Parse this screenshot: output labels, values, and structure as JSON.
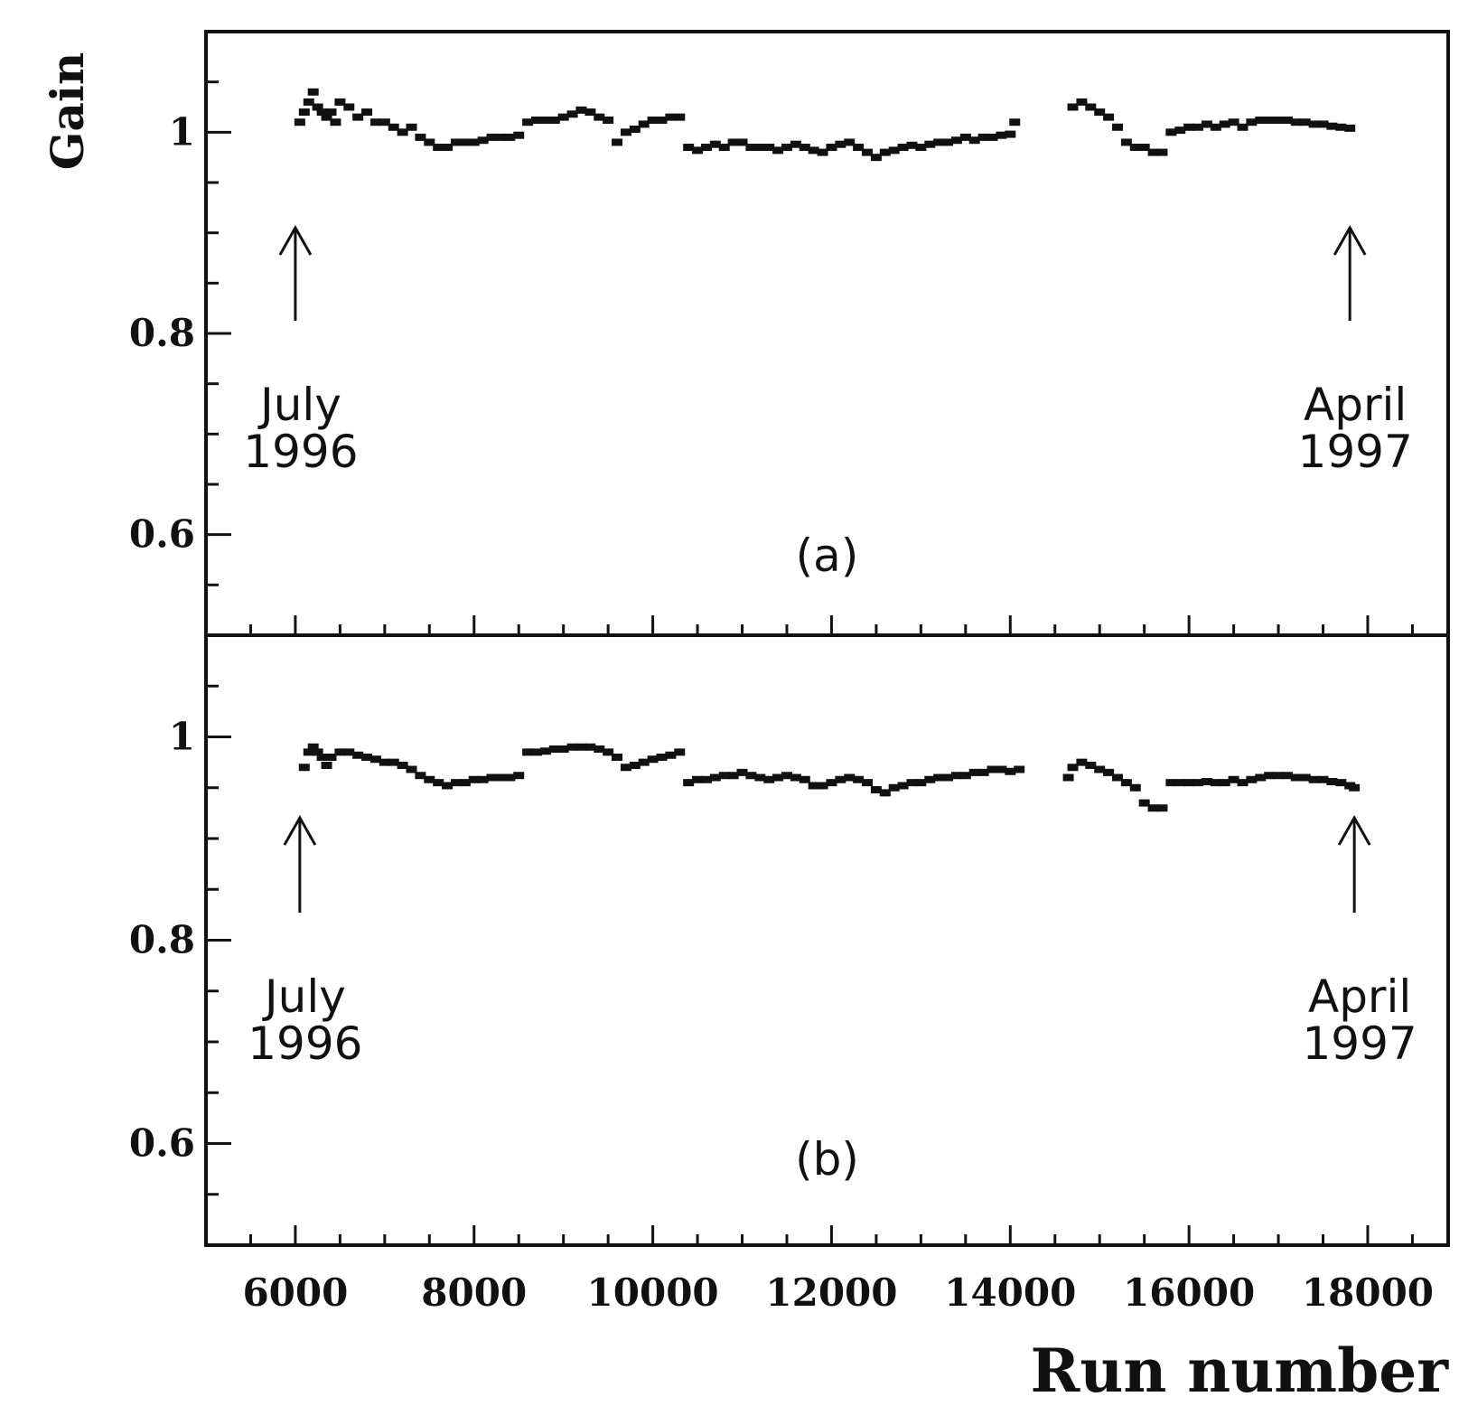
{
  "chart_data": {
    "type": "scatter",
    "ylabel": "Gain",
    "xlabel": "Run number",
    "xlim": [
      5000,
      18900
    ],
    "ylim": [
      0.5,
      1.1
    ],
    "x_ticks": [
      6000,
      8000,
      10000,
      12000,
      14000,
      16000,
      18000
    ],
    "x_tick_labels": [
      "6000",
      "8000",
      "10000",
      "12000",
      "14000",
      "16000",
      "18000"
    ],
    "y_ticks": [
      0.6,
      0.8,
      1.0
    ],
    "y_tick_labels": [
      "0.6",
      "0.8",
      "1"
    ],
    "grid": false,
    "panels": [
      {
        "label": "(a)",
        "annotations": [
          {
            "text_line1": "July",
            "text_line2": "1996",
            "arrow_x": 6000
          },
          {
            "text_line1": "April",
            "text_line2": "1997",
            "arrow_x": 17800
          }
        ],
        "points": [
          [
            6050,
            1.01
          ],
          [
            6100,
            1.02
          ],
          [
            6150,
            1.03
          ],
          [
            6200,
            1.04
          ],
          [
            6250,
            1.025
          ],
          [
            6300,
            1.02
          ],
          [
            6350,
            1.015
          ],
          [
            6400,
            1.02
          ],
          [
            6450,
            1.01
          ],
          [
            6500,
            1.03
          ],
          [
            6600,
            1.025
          ],
          [
            6700,
            1.015
          ],
          [
            6800,
            1.02
          ],
          [
            6900,
            1.01
          ],
          [
            7000,
            1.01
          ],
          [
            7100,
            1.005
          ],
          [
            7200,
            1.0
          ],
          [
            7300,
            1.005
          ],
          [
            7400,
            0.995
          ],
          [
            7500,
            0.99
          ],
          [
            7600,
            0.985
          ],
          [
            7700,
            0.985
          ],
          [
            7800,
            0.99
          ],
          [
            7900,
            0.99
          ],
          [
            8000,
            0.99
          ],
          [
            8100,
            0.992
          ],
          [
            8200,
            0.995
          ],
          [
            8300,
            0.995
          ],
          [
            8400,
            0.995
          ],
          [
            8500,
            0.997
          ],
          [
            8600,
            1.01
          ],
          [
            8700,
            1.012
          ],
          [
            8800,
            1.012
          ],
          [
            8900,
            1.012
          ],
          [
            9000,
            1.015
          ],
          [
            9100,
            1.018
          ],
          [
            9200,
            1.022
          ],
          [
            9300,
            1.02
          ],
          [
            9400,
            1.015
          ],
          [
            9500,
            1.012
          ],
          [
            9600,
            0.99
          ],
          [
            9700,
            1.0
          ],
          [
            9800,
            1.003
          ],
          [
            9900,
            1.008
          ],
          [
            10000,
            1.012
          ],
          [
            10100,
            1.012
          ],
          [
            10200,
            1.015
          ],
          [
            10300,
            1.015
          ],
          [
            10400,
            0.985
          ],
          [
            10500,
            0.982
          ],
          [
            10600,
            0.985
          ],
          [
            10700,
            0.988
          ],
          [
            10800,
            0.985
          ],
          [
            10900,
            0.99
          ],
          [
            11000,
            0.99
          ],
          [
            11100,
            0.985
          ],
          [
            11200,
            0.985
          ],
          [
            11300,
            0.985
          ],
          [
            11400,
            0.982
          ],
          [
            11500,
            0.985
          ],
          [
            11600,
            0.988
          ],
          [
            11700,
            0.985
          ],
          [
            11800,
            0.982
          ],
          [
            11900,
            0.98
          ],
          [
            12000,
            0.985
          ],
          [
            12100,
            0.988
          ],
          [
            12200,
            0.99
          ],
          [
            12300,
            0.985
          ],
          [
            12400,
            0.98
          ],
          [
            12500,
            0.975
          ],
          [
            12600,
            0.98
          ],
          [
            12700,
            0.982
          ],
          [
            12800,
            0.985
          ],
          [
            12900,
            0.987
          ],
          [
            13000,
            0.985
          ],
          [
            13100,
            0.988
          ],
          [
            13200,
            0.99
          ],
          [
            13300,
            0.99
          ],
          [
            13400,
            0.992
          ],
          [
            13500,
            0.995
          ],
          [
            13600,
            0.992
          ],
          [
            13700,
            0.995
          ],
          [
            13800,
            0.995
          ],
          [
            13900,
            0.997
          ],
          [
            14000,
            0.998
          ],
          [
            14050,
            1.01
          ],
          [
            14700,
            1.025
          ],
          [
            14800,
            1.03
          ],
          [
            14900,
            1.025
          ],
          [
            15000,
            1.02
          ],
          [
            15100,
            1.015
          ],
          [
            15200,
            1.005
          ],
          [
            15300,
            0.99
          ],
          [
            15400,
            0.985
          ],
          [
            15500,
            0.985
          ],
          [
            15600,
            0.98
          ],
          [
            15700,
            0.98
          ],
          [
            15800,
            1.0
          ],
          [
            15900,
            1.002
          ],
          [
            16000,
            1.005
          ],
          [
            16100,
            1.005
          ],
          [
            16200,
            1.008
          ],
          [
            16300,
            1.005
          ],
          [
            16400,
            1.008
          ],
          [
            16500,
            1.01
          ],
          [
            16600,
            1.005
          ],
          [
            16700,
            1.01
          ],
          [
            16800,
            1.012
          ],
          [
            16900,
            1.012
          ],
          [
            17000,
            1.012
          ],
          [
            17100,
            1.012
          ],
          [
            17200,
            1.01
          ],
          [
            17300,
            1.01
          ],
          [
            17400,
            1.008
          ],
          [
            17500,
            1.008
          ],
          [
            17600,
            1.006
          ],
          [
            17700,
            1.005
          ],
          [
            17800,
            1.004
          ]
        ]
      },
      {
        "label": "(b)",
        "annotations": [
          {
            "text_line1": "July",
            "text_line2": "1996",
            "arrow_x": 6050
          },
          {
            "text_line1": "April",
            "text_line2": "1997",
            "arrow_x": 17850
          }
        ],
        "points": [
          [
            6100,
            0.97
          ],
          [
            6150,
            0.985
          ],
          [
            6200,
            0.99
          ],
          [
            6250,
            0.985
          ],
          [
            6300,
            0.98
          ],
          [
            6350,
            0.972
          ],
          [
            6400,
            0.98
          ],
          [
            6500,
            0.985
          ],
          [
            6600,
            0.985
          ],
          [
            6700,
            0.982
          ],
          [
            6800,
            0.98
          ],
          [
            6900,
            0.978
          ],
          [
            7000,
            0.975
          ],
          [
            7100,
            0.975
          ],
          [
            7200,
            0.972
          ],
          [
            7300,
            0.968
          ],
          [
            7400,
            0.962
          ],
          [
            7500,
            0.958
          ],
          [
            7600,
            0.955
          ],
          [
            7700,
            0.952
          ],
          [
            7800,
            0.955
          ],
          [
            7900,
            0.955
          ],
          [
            8000,
            0.958
          ],
          [
            8100,
            0.958
          ],
          [
            8200,
            0.96
          ],
          [
            8300,
            0.96
          ],
          [
            8400,
            0.96
          ],
          [
            8500,
            0.962
          ],
          [
            8600,
            0.985
          ],
          [
            8700,
            0.985
          ],
          [
            8800,
            0.986
          ],
          [
            8900,
            0.988
          ],
          [
            9000,
            0.988
          ],
          [
            9100,
            0.99
          ],
          [
            9200,
            0.99
          ],
          [
            9300,
            0.99
          ],
          [
            9400,
            0.988
          ],
          [
            9500,
            0.985
          ],
          [
            9600,
            0.98
          ],
          [
            9700,
            0.97
          ],
          [
            9800,
            0.972
          ],
          [
            9900,
            0.975
          ],
          [
            10000,
            0.978
          ],
          [
            10100,
            0.98
          ],
          [
            10200,
            0.982
          ],
          [
            10300,
            0.985
          ],
          [
            10400,
            0.955
          ],
          [
            10500,
            0.958
          ],
          [
            10600,
            0.958
          ],
          [
            10700,
            0.96
          ],
          [
            10800,
            0.962
          ],
          [
            10900,
            0.962
          ],
          [
            11000,
            0.965
          ],
          [
            11100,
            0.962
          ],
          [
            11200,
            0.96
          ],
          [
            11300,
            0.958
          ],
          [
            11400,
            0.96
          ],
          [
            11500,
            0.962
          ],
          [
            11600,
            0.96
          ],
          [
            11700,
            0.958
          ],
          [
            11800,
            0.952
          ],
          [
            11900,
            0.952
          ],
          [
            12000,
            0.955
          ],
          [
            12100,
            0.958
          ],
          [
            12200,
            0.96
          ],
          [
            12300,
            0.958
          ],
          [
            12400,
            0.955
          ],
          [
            12500,
            0.948
          ],
          [
            12600,
            0.945
          ],
          [
            12700,
            0.95
          ],
          [
            12800,
            0.952
          ],
          [
            12900,
            0.955
          ],
          [
            13000,
            0.955
          ],
          [
            13100,
            0.958
          ],
          [
            13200,
            0.96
          ],
          [
            13300,
            0.96
          ],
          [
            13400,
            0.962
          ],
          [
            13500,
            0.962
          ],
          [
            13600,
            0.965
          ],
          [
            13700,
            0.965
          ],
          [
            13800,
            0.968
          ],
          [
            13900,
            0.968
          ],
          [
            14000,
            0.966
          ],
          [
            14100,
            0.968
          ],
          [
            14650,
            0.96
          ],
          [
            14700,
            0.97
          ],
          [
            14800,
            0.975
          ],
          [
            14900,
            0.972
          ],
          [
            15000,
            0.968
          ],
          [
            15100,
            0.965
          ],
          [
            15200,
            0.96
          ],
          [
            15300,
            0.955
          ],
          [
            15400,
            0.95
          ],
          [
            15500,
            0.935
          ],
          [
            15600,
            0.93
          ],
          [
            15700,
            0.93
          ],
          [
            15800,
            0.955
          ],
          [
            15900,
            0.955
          ],
          [
            16000,
            0.955
          ],
          [
            16100,
            0.955
          ],
          [
            16200,
            0.956
          ],
          [
            16300,
            0.955
          ],
          [
            16400,
            0.955
          ],
          [
            16500,
            0.958
          ],
          [
            16600,
            0.955
          ],
          [
            16700,
            0.958
          ],
          [
            16800,
            0.96
          ],
          [
            16900,
            0.962
          ],
          [
            17000,
            0.962
          ],
          [
            17100,
            0.962
          ],
          [
            17200,
            0.96
          ],
          [
            17300,
            0.96
          ],
          [
            17400,
            0.958
          ],
          [
            17500,
            0.958
          ],
          [
            17600,
            0.956
          ],
          [
            17700,
            0.955
          ],
          [
            17800,
            0.952
          ],
          [
            17850,
            0.95
          ]
        ]
      }
    ]
  }
}
